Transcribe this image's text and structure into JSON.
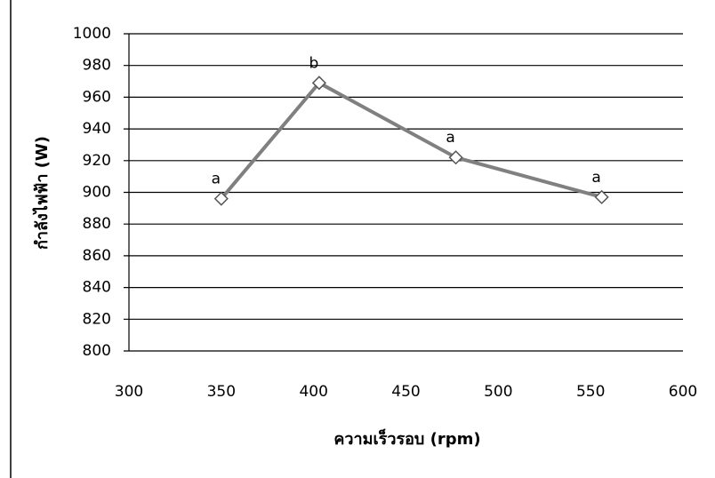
{
  "chart_data": {
    "type": "line",
    "x_label": "ความเร็วรอบ (rpm)",
    "y_label": "กำลังไฟฟ้า (W)",
    "x": [
      350,
      403,
      477,
      556
    ],
    "series": [
      {
        "color": "#808080",
        "values": [
          896,
          969,
          922,
          897
        ],
        "point_labels": [
          "a",
          "b",
          "a",
          "a"
        ]
      }
    ],
    "xlim": [
      300,
      600
    ],
    "xticks": [
      300,
      350,
      400,
      450,
      500,
      550,
      600
    ],
    "ylim": [
      800,
      1000
    ],
    "yticks": [
      800,
      820,
      840,
      860,
      880,
      900,
      920,
      940,
      960,
      980,
      1000
    ],
    "grid": true
  }
}
